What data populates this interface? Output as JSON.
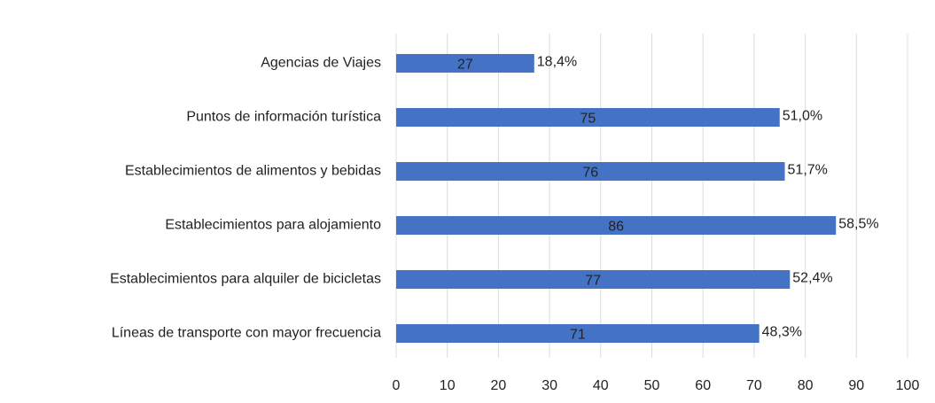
{
  "chart_data": {
    "type": "bar",
    "orientation": "horizontal",
    "categories": [
      "Agencias de Viajes",
      "Puntos de información turística",
      "Establecimientos de alimentos y bebidas",
      "Establecimientos para alojamiento",
      "Establecimientos para alquiler de bicicletas",
      "Líneas de transporte con mayor frecuencia"
    ],
    "values": [
      27,
      75,
      76,
      86,
      77,
      71
    ],
    "shares": {
      "values": [
        18.4,
        51.0,
        51.7,
        58.5,
        52.4,
        48.3
      ],
      "value_labels": [
        "18,4%",
        "51,0%",
        "51,7%",
        "58,5%",
        "52,4%",
        "48,3%"
      ]
    },
    "color": "#4472c4",
    "xlim": [
      0,
      100
    ],
    "xticks": [
      0,
      10,
      20,
      30,
      40,
      50,
      60,
      70,
      80,
      90,
      100
    ],
    "grid": true
  }
}
